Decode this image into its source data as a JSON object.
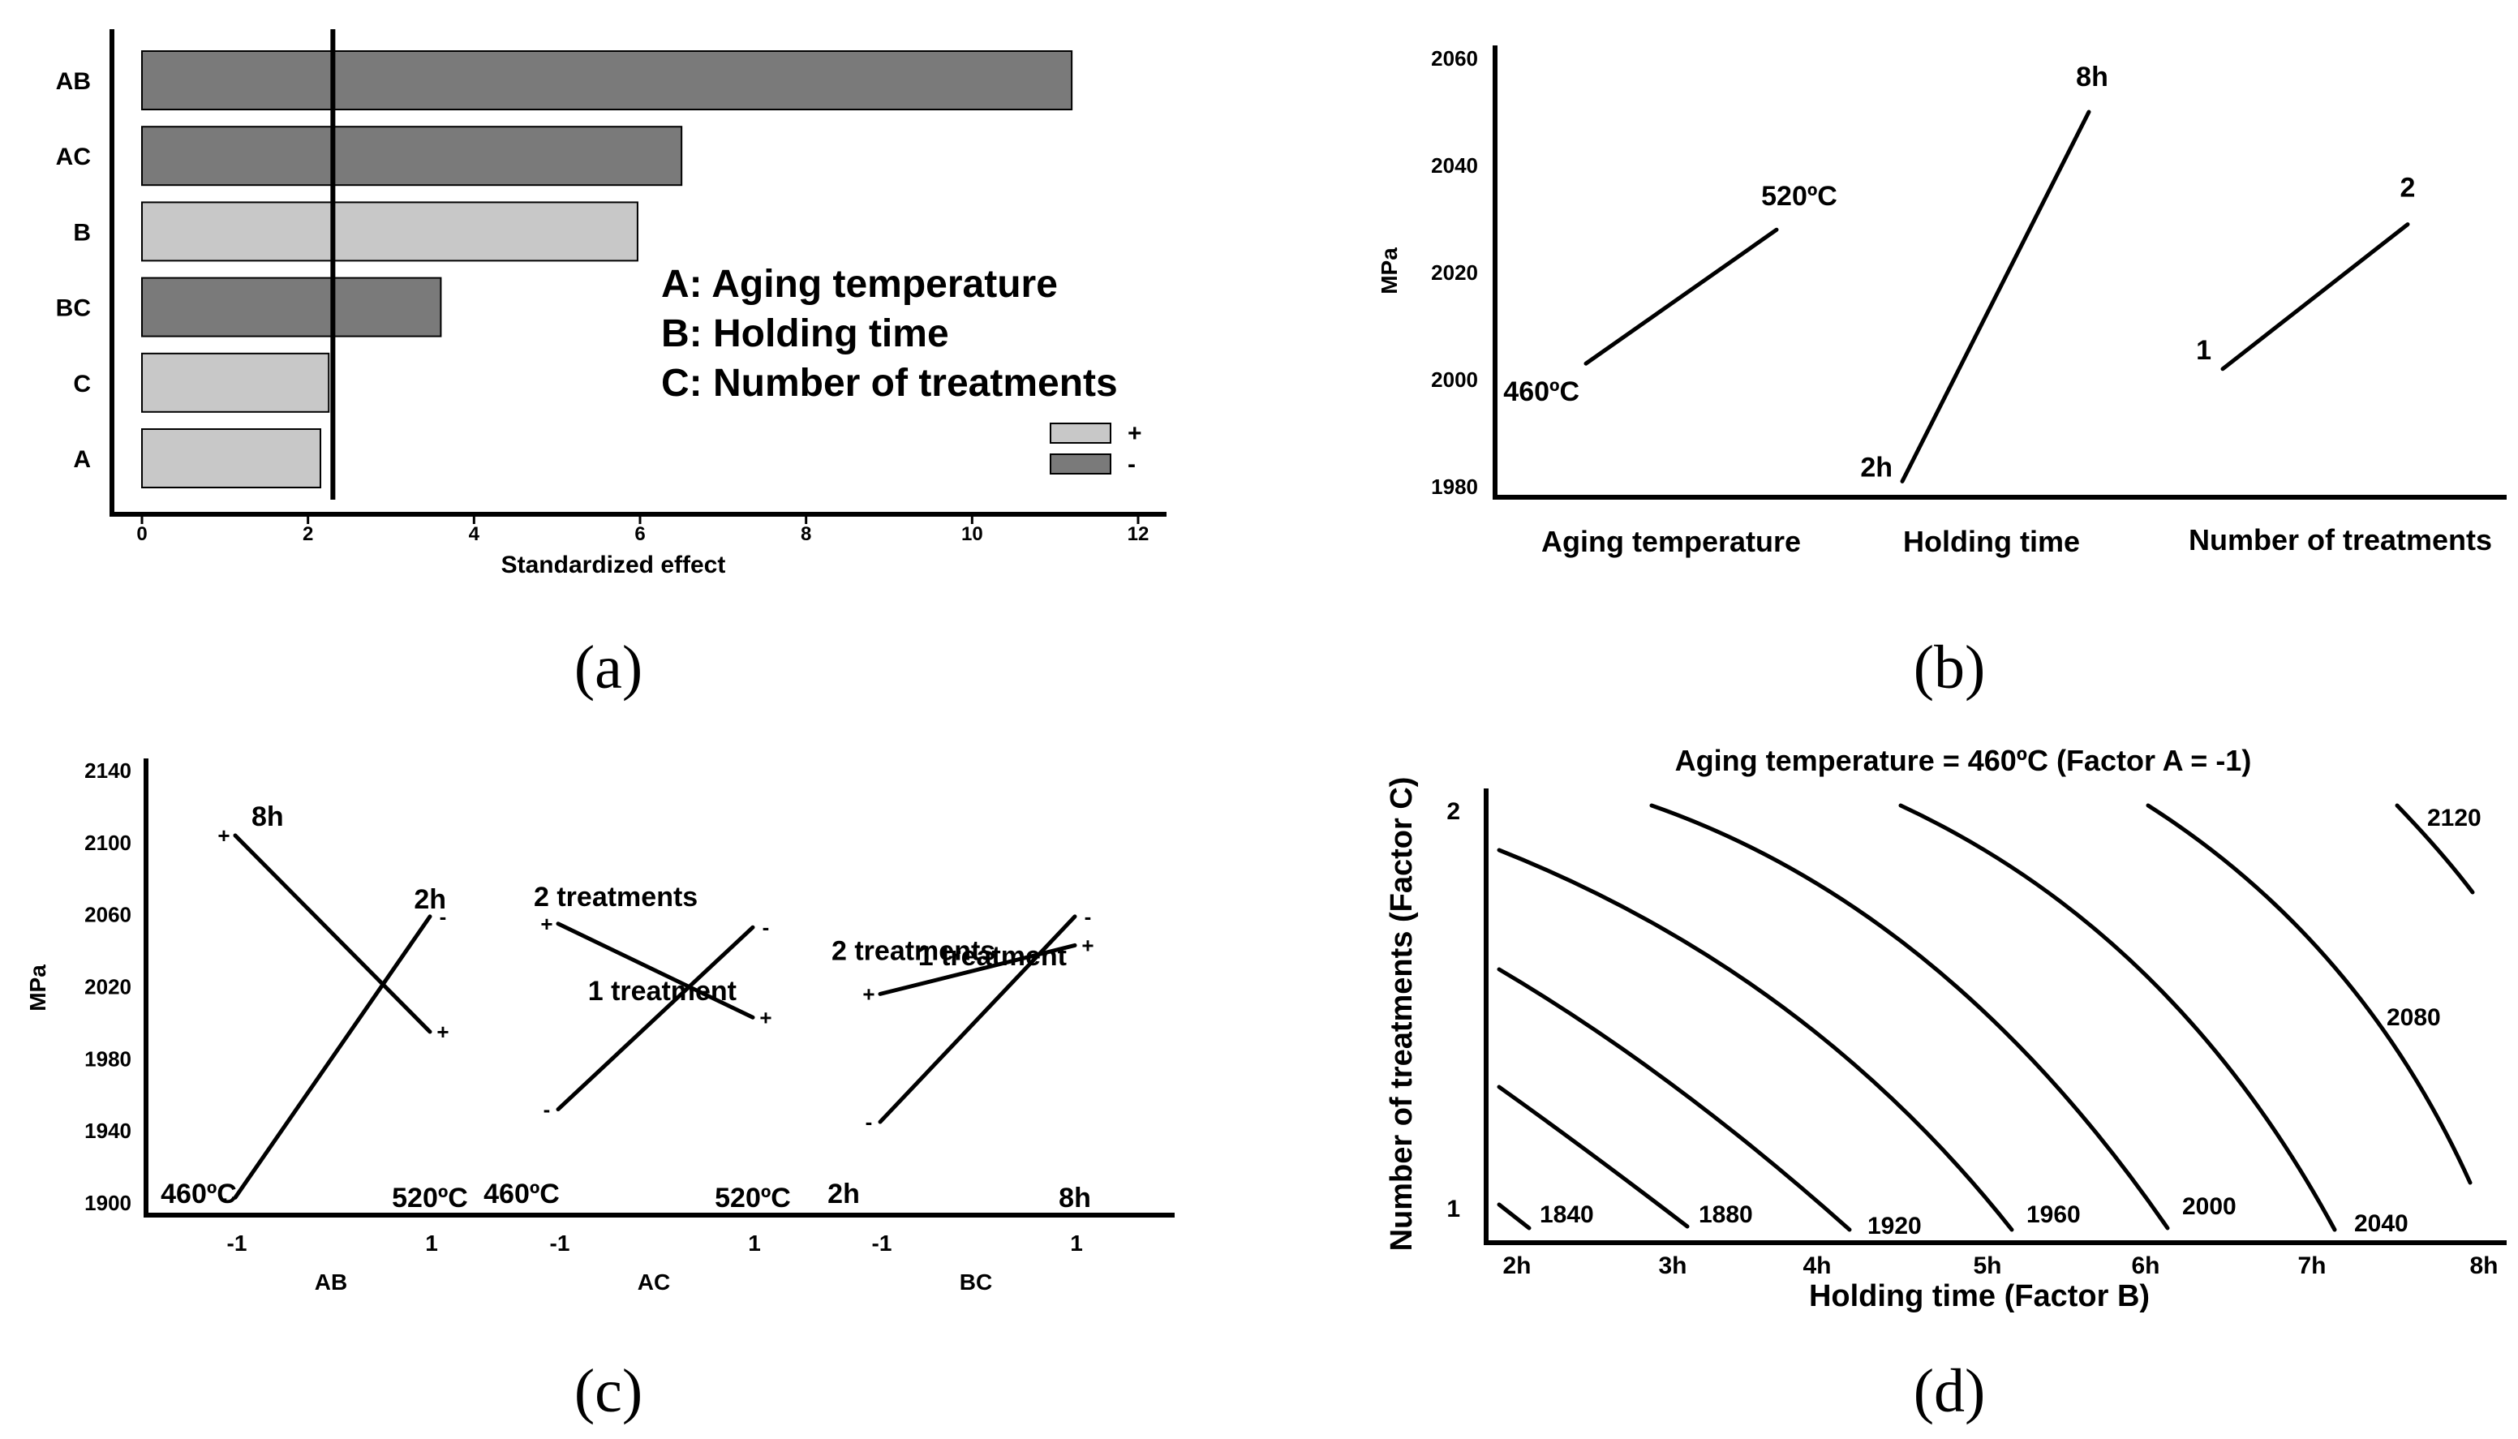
{
  "chart_data": [
    {
      "type": "bar",
      "panel": "a",
      "caption": "(a)",
      "orientation": "horizontal",
      "categories": [
        "AB",
        "AC",
        "B",
        "BC",
        "C",
        "A"
      ],
      "values": [
        11.2,
        6.5,
        5.97,
        3.6,
        2.25,
        2.15
      ],
      "signs": [
        "-",
        "-",
        "+",
        "-",
        "+",
        "+"
      ],
      "xlabel": "Standardized effect",
      "xlim": [
        0,
        12
      ],
      "xticks": [
        "0",
        "2",
        "4",
        "6",
        "8",
        "10",
        "12"
      ],
      "reference_line": 2.3,
      "legend": [
        {
          "label": "+",
          "color": "#c8c8c8"
        },
        {
          "label": "-",
          "color": "#7a7a7a"
        }
      ],
      "legend_position": "right",
      "factor_notes": [
        "A: Aging temperature",
        "B: Holding time",
        "C: Number of treatments"
      ],
      "colors": {
        "plus": "#c8c8c8",
        "minus": "#7a7a7a"
      }
    },
    {
      "type": "line",
      "panel": "b",
      "caption": "(b)",
      "title": "",
      "ylabel": "MPa",
      "ylim": [
        1980,
        2060
      ],
      "yticks": [
        "1980",
        "2000",
        "2020",
        "2040",
        "2060"
      ],
      "groups": [
        "Aging temperature",
        "Holding time",
        "Number of treatments"
      ],
      "series": [
        {
          "name": "Aging temperature",
          "low_label": "460ºC",
          "high_label": "520ºC",
          "values": [
            2003,
            2028
          ]
        },
        {
          "name": "Holding time",
          "low_label": "2h",
          "high_label": "8h",
          "values": [
            1981,
            2050
          ]
        },
        {
          "name": "Number of treatments",
          "low_label": "1",
          "high_label": "2",
          "values": [
            2002,
            2029
          ]
        }
      ]
    },
    {
      "type": "line",
      "panel": "c",
      "caption": "(c)",
      "ylabel": "MPa",
      "ylim": [
        1900,
        2140
      ],
      "yticks": [
        "1900",
        "1940",
        "1980",
        "2020",
        "2060",
        "2100",
        "2140"
      ],
      "groups": [
        {
          "name": "AB",
          "x": [
            "-1",
            "1"
          ],
          "low_label": "460ºC",
          "high_label": "520ºC",
          "series": [
            {
              "name": "8h",
              "sign": "+",
              "values": [
                2104,
                1995
              ]
            },
            {
              "name": "2h",
              "sign": "-",
              "values": [
                1903,
                2059
              ]
            }
          ]
        },
        {
          "name": "AC",
          "x": [
            "-1",
            "1"
          ],
          "low_label": "460ºC",
          "high_label": "520ºC",
          "series": [
            {
              "name": "2 treatments",
              "sign": "+",
              "values": [
                2055,
                2003
              ]
            },
            {
              "name": "1 treatment",
              "sign": "-",
              "values": [
                1952,
                2053
              ]
            }
          ]
        },
        {
          "name": "BC",
          "x": [
            "-1",
            "1"
          ],
          "low_label": "2h",
          "high_label": "8h",
          "series": [
            {
              "name": "2 treatments",
              "sign": "+",
              "values": [
                2016,
                2043
              ]
            },
            {
              "name": "1 treatment",
              "sign": "-",
              "values": [
                1945,
                2059
              ]
            }
          ]
        }
      ]
    },
    {
      "type": "contour",
      "panel": "d",
      "caption": "(d)",
      "title": "Aging temperature = 460ºC (Factor A = -1)",
      "xlabel": "Holding time (Factor B)",
      "ylabel": "Number of treatments (Factor C)",
      "xticks": [
        "2h",
        "3h",
        "4h",
        "5h",
        "6h",
        "7h",
        "8h"
      ],
      "yticks": [
        "1",
        "2"
      ],
      "contour_levels": [
        "1840",
        "1880",
        "1920",
        "1960",
        "2000",
        "2040",
        "2080",
        "2120"
      ]
    }
  ]
}
